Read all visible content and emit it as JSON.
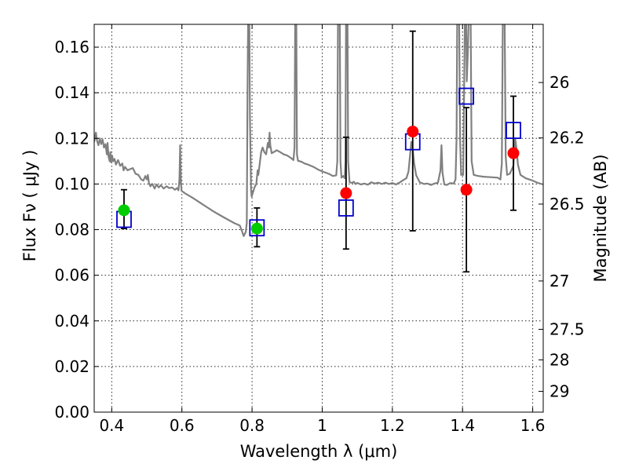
{
  "chart_data": {
    "type": "scatter",
    "xlabel": "Wavelength  λ (μm)",
    "ylabel": "Flux  Fν  ( μJy )",
    "ylabel_right": "Magnitude (AB)",
    "xlim": [
      0.35,
      1.63
    ],
    "ylim": [
      0.0,
      0.17
    ],
    "grid": true,
    "x_ticks": [
      0.4,
      0.6,
      0.8,
      1.0,
      1.2,
      1.4,
      1.6
    ],
    "x_tick_labels": [
      "0.4",
      "0.6",
      "0.8",
      "1",
      "1.2",
      "1.4",
      "1.6"
    ],
    "y_ticks": [
      0.0,
      0.02,
      0.04,
      0.06,
      0.08,
      0.1,
      0.12,
      0.14,
      0.16
    ],
    "y_tick_labels": [
      "0.00",
      "0.02",
      "0.04",
      "0.06",
      "0.08",
      "0.10",
      "0.12",
      "0.14",
      "0.16"
    ],
    "right_ticks": [
      {
        "label": "26",
        "flux": 0.1445
      },
      {
        "label": "26.2",
        "flux": 0.1202
      },
      {
        "label": "26.5",
        "flux": 0.0912
      },
      {
        "label": "27",
        "flux": 0.0575
      },
      {
        "label": "27.5",
        "flux": 0.0363
      },
      {
        "label": "28",
        "flux": 0.0229
      },
      {
        "label": "29",
        "flux": 0.0091
      }
    ],
    "series": [
      {
        "marker": "open-square",
        "color": "#0000cc",
        "points": [
          {
            "x": 0.435,
            "y": 0.0845
          },
          {
            "x": 0.814,
            "y": 0.0808
          },
          {
            "x": 1.068,
            "y": 0.0895
          },
          {
            "x": 1.258,
            "y": 0.1185
          },
          {
            "x": 1.411,
            "y": 0.1385
          },
          {
            "x": 1.545,
            "y": 0.1235
          }
        ]
      },
      {
        "marker": "filled-circle",
        "points": [
          {
            "x": 0.435,
            "y": 0.0885,
            "color": "#00cc00"
          },
          {
            "x": 0.814,
            "y": 0.0805,
            "color": "#00cc00"
          },
          {
            "x": 1.068,
            "y": 0.096,
            "color": "#ff0000"
          },
          {
            "x": 1.258,
            "y": 0.123,
            "color": "#ff0000"
          },
          {
            "x": 1.411,
            "y": 0.0975,
            "color": "#ff0000"
          },
          {
            "x": 1.545,
            "y": 0.1135,
            "color": "#ff0000"
          }
        ]
      }
    ],
    "error_bars": [
      {
        "x": 0.435,
        "low": 0.0805,
        "high": 0.0975
      },
      {
        "x": 0.814,
        "low": 0.0725,
        "high": 0.0895
      },
      {
        "x": 1.068,
        "low": 0.0715,
        "high": 0.1205
      },
      {
        "x": 1.258,
        "low": 0.0795,
        "high": 0.167
      },
      {
        "x": 1.411,
        "low": 0.0615,
        "high": 0.1335
      },
      {
        "x": 1.545,
        "low": 0.0885,
        "high": 0.1385
      }
    ],
    "model_spectrum": {
      "color": "#808080",
      "points": [
        [
          0.35,
          0.1185
        ],
        [
          0.355,
          0.1225
        ],
        [
          0.358,
          0.119
        ],
        [
          0.362,
          0.117
        ],
        [
          0.366,
          0.12
        ],
        [
          0.37,
          0.1175
        ],
        [
          0.374,
          0.1195
        ],
        [
          0.378,
          0.116
        ],
        [
          0.382,
          0.1175
        ],
        [
          0.386,
          0.113
        ],
        [
          0.388,
          0.118
        ],
        [
          0.391,
          0.112
        ],
        [
          0.394,
          0.11
        ],
        [
          0.396,
          0.114
        ],
        [
          0.398,
          0.1095
        ],
        [
          0.401,
          0.1125
        ],
        [
          0.404,
          0.11
        ],
        [
          0.408,
          0.111
        ],
        [
          0.412,
          0.1085
        ],
        [
          0.418,
          0.1105
        ],
        [
          0.424,
          0.108
        ],
        [
          0.43,
          0.109
        ],
        [
          0.434,
          0.106
        ],
        [
          0.438,
          0.1075
        ],
        [
          0.445,
          0.106
        ],
        [
          0.452,
          0.1065
        ],
        [
          0.46,
          0.107
        ],
        [
          0.468,
          0.1045
        ],
        [
          0.476,
          0.104
        ],
        [
          0.484,
          0.102
        ],
        [
          0.49,
          0.1015
        ],
        [
          0.496,
          0.1035
        ],
        [
          0.5,
          0.102
        ],
        [
          0.503,
          0.104
        ],
        [
          0.506,
          0.1005
        ],
        [
          0.51,
          0.099
        ],
        [
          0.516,
          0.1
        ],
        [
          0.522,
          0.098
        ],
        [
          0.528,
          0.0998
        ],
        [
          0.534,
          0.0985
        ],
        [
          0.54,
          0.0995
        ],
        [
          0.548,
          0.098
        ],
        [
          0.556,
          0.099
        ],
        [
          0.564,
          0.0982
        ],
        [
          0.572,
          0.0985
        ],
        [
          0.58,
          0.0975
        ],
        [
          0.586,
          0.0982
        ],
        [
          0.59,
          0.0972
        ],
        [
          0.593,
          0.102
        ],
        [
          0.595,
          0.117
        ],
        [
          0.597,
          0.101
        ],
        [
          0.599,
          0.097
        ],
        [
          0.61,
          0.0958
        ],
        [
          0.63,
          0.094
        ],
        [
          0.65,
          0.092
        ],
        [
          0.67,
          0.09
        ],
        [
          0.69,
          0.088
        ],
        [
          0.71,
          0.0862
        ],
        [
          0.73,
          0.0845
        ],
        [
          0.75,
          0.0828
        ],
        [
          0.765,
          0.0818
        ],
        [
          0.772,
          0.079
        ],
        [
          0.776,
          0.0772
        ],
        [
          0.782,
          0.079
        ],
        [
          0.785,
          0.083
        ],
        [
          0.787,
          0.14
        ],
        [
          0.789,
          0.176
        ],
        [
          0.792,
          0.176
        ],
        [
          0.794,
          0.13
        ],
        [
          0.797,
          0.0975
        ],
        [
          0.799,
          0.0945
        ],
        [
          0.803,
          0.0965
        ],
        [
          0.807,
          0.0985
        ],
        [
          0.812,
          0.1
        ],
        [
          0.816,
          0.106
        ],
        [
          0.818,
          0.104
        ],
        [
          0.822,
          0.109
        ],
        [
          0.826,
          0.114
        ],
        [
          0.83,
          0.116
        ],
        [
          0.835,
          0.114
        ],
        [
          0.84,
          0.113
        ],
        [
          0.845,
          0.118
        ],
        [
          0.848,
          0.116
        ],
        [
          0.85,
          0.1225
        ],
        [
          0.852,
          0.117
        ],
        [
          0.856,
          0.1135
        ],
        [
          0.862,
          0.114
        ],
        [
          0.87,
          0.1148
        ],
        [
          0.88,
          0.114
        ],
        [
          0.89,
          0.113
        ],
        [
          0.9,
          0.1125
        ],
        [
          0.91,
          0.1115
        ],
        [
          0.918,
          0.1105
        ],
        [
          0.921,
          0.116
        ],
        [
          0.923,
          0.176
        ],
        [
          0.926,
          0.176
        ],
        [
          0.928,
          0.113
        ],
        [
          0.931,
          0.1102
        ],
        [
          0.94,
          0.1098
        ],
        [
          0.95,
          0.109
        ],
        [
          0.96,
          0.1085
        ],
        [
          0.975,
          0.1075
        ],
        [
          0.99,
          0.1062
        ],
        [
          1.0,
          0.1055
        ],
        [
          1.01,
          0.105
        ],
        [
          1.02,
          0.1044
        ],
        [
          1.03,
          0.1035
        ],
        [
          1.04,
          0.1038
        ],
        [
          1.043,
          0.11
        ],
        [
          1.045,
          0.176
        ],
        [
          1.05,
          0.176
        ],
        [
          1.052,
          0.11
        ],
        [
          1.055,
          0.1028
        ],
        [
          1.06,
          0.1035
        ],
        [
          1.064,
          0.1025
        ],
        [
          1.066,
          0.11
        ],
        [
          1.068,
          0.176
        ],
        [
          1.072,
          0.176
        ],
        [
          1.074,
          0.11
        ],
        [
          1.078,
          0.1008
        ],
        [
          1.085,
          0.1005
        ],
        [
          1.09,
          0.101
        ],
        [
          1.095,
          0.1
        ],
        [
          1.1,
          0.1005
        ],
        [
          1.11,
          0.0998
        ],
        [
          1.12,
          0.1002
        ],
        [
          1.13,
          0.0997
        ],
        [
          1.14,
          0.1008
        ],
        [
          1.15,
          0.1002
        ],
        [
          1.16,
          0.1006
        ],
        [
          1.17,
          0.1
        ],
        [
          1.18,
          0.1006
        ],
        [
          1.19,
          0.1
        ],
        [
          1.2,
          0.1004
        ],
        [
          1.21,
          0.0998
        ],
        [
          1.22,
          0.1006
        ],
        [
          1.232,
          0.1018
        ],
        [
          1.24,
          0.1025
        ],
        [
          1.246,
          0.1055
        ],
        [
          1.25,
          0.112
        ],
        [
          1.254,
          0.1185
        ],
        [
          1.258,
          0.115
        ],
        [
          1.262,
          0.109
        ],
        [
          1.268,
          0.1038
        ],
        [
          1.278,
          0.1008
        ],
        [
          1.29,
          0.1
        ],
        [
          1.3,
          0.1002
        ],
        [
          1.31,
          0.0996
        ],
        [
          1.32,
          0.1002
        ],
        [
          1.33,
          0.1006
        ],
        [
          1.337,
          0.106
        ],
        [
          1.34,
          0.117
        ],
        [
          1.343,
          0.105
        ],
        [
          1.348,
          0.0998
        ],
        [
          1.355,
          0.0996
        ],
        [
          1.365,
          0.1004
        ],
        [
          1.375,
          0.1002
        ],
        [
          1.38,
          0.102
        ],
        [
          1.383,
          0.12
        ],
        [
          1.385,
          0.176
        ],
        [
          1.39,
          0.176
        ],
        [
          1.393,
          0.12
        ],
        [
          1.396,
          0.104
        ],
        [
          1.402,
          0.104
        ],
        [
          1.405,
          0.15
        ],
        [
          1.407,
          0.176
        ],
        [
          1.41,
          0.176
        ],
        [
          1.412,
          0.145
        ],
        [
          1.415,
          0.157
        ],
        [
          1.418,
          0.176
        ],
        [
          1.423,
          0.176
        ],
        [
          1.426,
          0.11
        ],
        [
          1.432,
          0.104
        ],
        [
          1.445,
          0.1035
        ],
        [
          1.46,
          0.1032
        ],
        [
          1.48,
          0.103
        ],
        [
          1.5,
          0.1028
        ],
        [
          1.508,
          0.102
        ],
        [
          1.512,
          0.109
        ],
        [
          1.515,
          0.176
        ],
        [
          1.52,
          0.176
        ],
        [
          1.523,
          0.112
        ],
        [
          1.527,
          0.104
        ],
        [
          1.535,
          0.1045
        ],
        [
          1.545,
          0.108
        ],
        [
          1.55,
          0.12
        ],
        [
          1.553,
          0.1165
        ],
        [
          1.558,
          0.1085
        ],
        [
          1.565,
          0.104
        ],
        [
          1.58,
          0.1025
        ],
        [
          1.6,
          0.1015
        ],
        [
          1.615,
          0.1005
        ],
        [
          1.63,
          0.0998
        ]
      ]
    }
  }
}
